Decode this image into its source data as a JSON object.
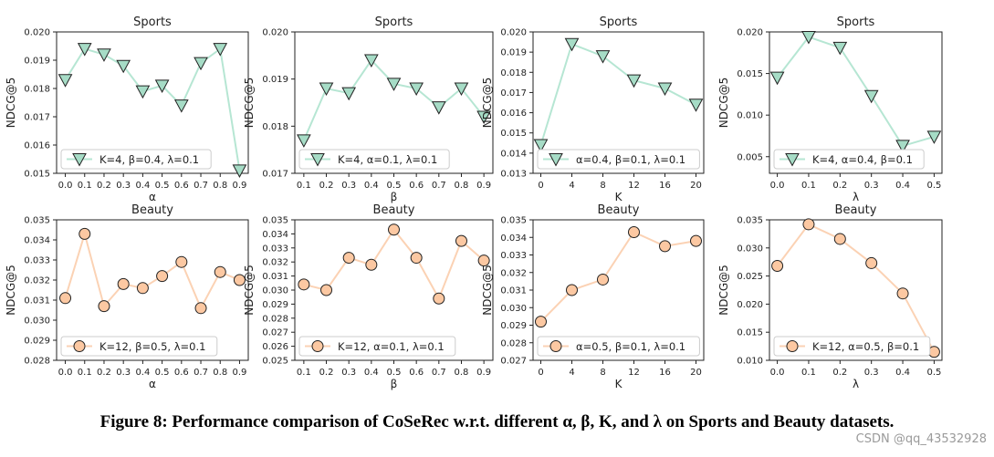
{
  "caption": "Figure 8: Performance comparison of CoSeRec w.r.t. different α, β, K, and λ on Sports and Beauty datasets.",
  "watermark": "CSDN @qq_43532928",
  "colors": {
    "sports_marker": "#a6dcc6",
    "sports_line": "#b6e6d3",
    "beauty_marker": "#fcc8a2",
    "beauty_line": "#fbd2b4"
  },
  "chart_data": [
    {
      "type": "line",
      "title": "Sports",
      "xlabel": "α",
      "ylabel": "NDCG@5",
      "marker": "triangle-down",
      "dataset": "sports",
      "x": [
        0.0,
        0.1,
        0.2,
        0.3,
        0.4,
        0.5,
        0.6,
        0.7,
        0.8,
        0.9
      ],
      "xticks": [
        "0.0",
        "0.1",
        "0.2",
        "0.3",
        "0.4",
        "0.5",
        "0.6",
        "0.7",
        "0.8",
        "0.9"
      ],
      "y": [
        0.0183,
        0.0194,
        0.0192,
        0.0188,
        0.0179,
        0.0181,
        0.0174,
        0.0189,
        0.0194,
        0.0151
      ],
      "ylim": [
        0.015,
        0.02
      ],
      "yticks": [
        "0.015",
        "0.016",
        "0.017",
        "0.018",
        "0.019",
        "0.020"
      ],
      "legend": "K=4, β=0.4, λ=0.1",
      "legend_position": "lower-left",
      "grid": false
    },
    {
      "type": "line",
      "title": "Sports",
      "xlabel": "β",
      "ylabel": "NDCG@5",
      "marker": "triangle-down",
      "dataset": "sports",
      "x": [
        0.1,
        0.2,
        0.3,
        0.4,
        0.5,
        0.6,
        0.7,
        0.8,
        0.9
      ],
      "xticks": [
        "0.1",
        "0.2",
        "0.3",
        "0.4",
        "0.5",
        "0.6",
        "0.7",
        "0.8",
        "0.9"
      ],
      "y": [
        0.0177,
        0.0188,
        0.0187,
        0.0194,
        0.0189,
        0.0188,
        0.0184,
        0.0188,
        0.0182
      ],
      "ylim": [
        0.017,
        0.02
      ],
      "yticks": [
        "0.017",
        "0.018",
        "0.019",
        "0.020"
      ],
      "legend": "K=4, α=0.1, λ=0.1",
      "legend_position": "lower-left",
      "grid": false
    },
    {
      "type": "line",
      "title": "Sports",
      "xlabel": "K",
      "ylabel": "NDCG@5",
      "marker": "triangle-down",
      "dataset": "sports",
      "x": [
        0,
        4,
        8,
        12,
        16,
        20
      ],
      "xticks": [
        "0",
        "4",
        "8",
        "12",
        "16",
        "20"
      ],
      "y": [
        0.0144,
        0.0194,
        0.0188,
        0.0176,
        0.0172,
        0.0164
      ],
      "ylim": [
        0.013,
        0.02
      ],
      "yticks": [
        "0.013",
        "0.014",
        "0.015",
        "0.016",
        "0.017",
        "0.018",
        "0.019",
        "0.020"
      ],
      "legend": "α=0.4, β=0.1, λ=0.1",
      "legend_position": "lower-left",
      "grid": false
    },
    {
      "type": "line",
      "title": "Sports",
      "xlabel": "λ",
      "ylabel": "NDCG@5",
      "marker": "triangle-down",
      "dataset": "sports",
      "x": [
        0.0,
        0.1,
        0.2,
        0.3,
        0.4,
        0.5
      ],
      "xticks": [
        "0.0",
        "0.1",
        "0.2",
        "0.3",
        "0.4",
        "0.5"
      ],
      "y": [
        0.0145,
        0.0194,
        0.0181,
        0.0123,
        0.0063,
        0.0074
      ],
      "ylim": [
        0.003,
        0.02
      ],
      "yticks": [
        "0.005",
        "0.010",
        "0.015",
        "0.020"
      ],
      "legend": "K=4, α=0.4, β=0.1",
      "legend_position": "lower-left",
      "grid": false
    },
    {
      "type": "line",
      "title": "Beauty",
      "xlabel": "α",
      "ylabel": "NDCG@5",
      "marker": "circle",
      "dataset": "beauty",
      "x": [
        0.0,
        0.1,
        0.2,
        0.3,
        0.4,
        0.5,
        0.6,
        0.7,
        0.8,
        0.9
      ],
      "xticks": [
        "0.0",
        "0.1",
        "0.2",
        "0.3",
        "0.4",
        "0.5",
        "0.6",
        "0.7",
        "0.8",
        "0.9"
      ],
      "y": [
        0.0311,
        0.0343,
        0.0307,
        0.0318,
        0.0316,
        0.0322,
        0.0329,
        0.0306,
        0.0324,
        0.032
      ],
      "ylim": [
        0.028,
        0.035
      ],
      "yticks": [
        "0.028",
        "0.029",
        "0.030",
        "0.031",
        "0.032",
        "0.033",
        "0.034",
        "0.035"
      ],
      "legend": "K=12, β=0.5, λ=0.1",
      "legend_position": "lower-left",
      "grid": false
    },
    {
      "type": "line",
      "title": "Beauty",
      "xlabel": "β",
      "ylabel": "NDCG@5",
      "marker": "circle",
      "dataset": "beauty",
      "x": [
        0.1,
        0.2,
        0.3,
        0.4,
        0.5,
        0.6,
        0.7,
        0.8,
        0.9
      ],
      "xticks": [
        "0.1",
        "0.2",
        "0.3",
        "0.4",
        "0.5",
        "0.6",
        "0.7",
        "0.8",
        "0.9"
      ],
      "y": [
        0.0304,
        0.03,
        0.0323,
        0.0318,
        0.0343,
        0.0323,
        0.0294,
        0.0335,
        0.0321
      ],
      "ylim": [
        0.025,
        0.035
      ],
      "yticks": [
        "0.025",
        "0.026",
        "0.027",
        "0.028",
        "0.029",
        "0.030",
        "0.031",
        "0.032",
        "0.033",
        "0.034",
        "0.035"
      ],
      "legend": "K=12, α=0.1, λ=0.1",
      "legend_position": "lower-left",
      "grid": false
    },
    {
      "type": "line",
      "title": "Beauty",
      "xlabel": "K",
      "ylabel": "NDCG@5",
      "marker": "circle",
      "dataset": "beauty",
      "x": [
        0,
        4,
        8,
        12,
        16,
        20
      ],
      "xticks": [
        "0",
        "4",
        "8",
        "12",
        "16",
        "20"
      ],
      "y": [
        0.0292,
        0.031,
        0.0316,
        0.0343,
        0.0335,
        0.0338
      ],
      "ylim": [
        0.027,
        0.035
      ],
      "yticks": [
        "0.027",
        "0.028",
        "0.029",
        "0.030",
        "0.031",
        "0.032",
        "0.033",
        "0.034",
        "0.035"
      ],
      "legend": "α=0.5, β=0.1, λ=0.1",
      "legend_position": "lower-left",
      "grid": false
    },
    {
      "type": "line",
      "title": "Beauty",
      "xlabel": "λ",
      "ylabel": "NDCG@5",
      "marker": "circle",
      "dataset": "beauty",
      "x": [
        0.0,
        0.1,
        0.2,
        0.3,
        0.4,
        0.5
      ],
      "xticks": [
        "0.0",
        "0.1",
        "0.2",
        "0.3",
        "0.4",
        "0.5"
      ],
      "y": [
        0.0268,
        0.0342,
        0.0316,
        0.0273,
        0.0219,
        0.0115
      ],
      "ylim": [
        0.01,
        0.035
      ],
      "yticks": [
        "0.010",
        "0.015",
        "0.020",
        "0.025",
        "0.030",
        "0.035"
      ],
      "legend": "K=12, α=0.5, β=0.1",
      "legend_position": "lower-left",
      "grid": false
    }
  ]
}
